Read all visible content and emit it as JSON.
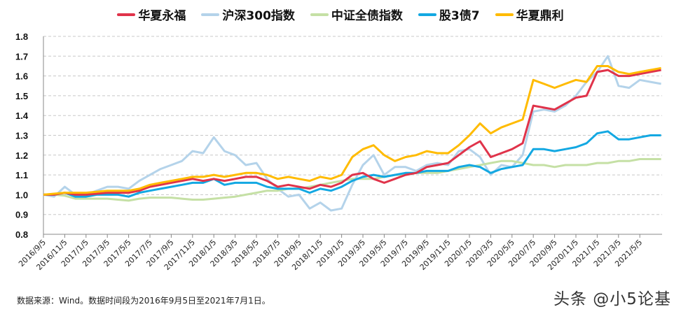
{
  "chart_data": {
    "type": "line",
    "title": "",
    "xlabel": "",
    "ylabel": "",
    "ylim": [
      0.8,
      1.8
    ],
    "yticks": [
      "0.8",
      "0.9",
      "1.0",
      "1.1",
      "1.2",
      "1.3",
      "1.4",
      "1.5",
      "1.6",
      "1.7",
      "1.8"
    ],
    "grid": "horizontal dashed",
    "legend_position": "top",
    "xtick_labels": [
      "2016/9/5",
      "2016/11/5",
      "2017/1/5",
      "2017/3/5",
      "2017/5/5",
      "2017/7/5",
      "2017/9/5",
      "2017/11/5",
      "2018/1/5",
      "2018/3/5",
      "2018/5/5",
      "2018/7/5",
      "2018/9/5",
      "2018/11/5",
      "2019/1/5",
      "2019/3/5",
      "2019/5/5",
      "2019/7/5",
      "2019/9/5",
      "2019/11/5",
      "2020/1/5",
      "2020/3/5",
      "2020/5/5",
      "2020/7/5",
      "2020/9/5",
      "2020/11/5",
      "2021/1/5",
      "2021/3/5",
      "2021/5/5"
    ],
    "x": [
      "2016-09",
      "2016-10",
      "2016-11",
      "2016-12",
      "2017-01",
      "2017-02",
      "2017-03",
      "2017-04",
      "2017-05",
      "2017-06",
      "2017-07",
      "2017-08",
      "2017-09",
      "2017-10",
      "2017-11",
      "2017-12",
      "2018-01",
      "2018-02",
      "2018-03",
      "2018-04",
      "2018-05",
      "2018-06",
      "2018-07",
      "2018-08",
      "2018-09",
      "2018-10",
      "2018-11",
      "2018-12",
      "2019-01",
      "2019-02",
      "2019-03",
      "2019-04",
      "2019-05",
      "2019-06",
      "2019-07",
      "2019-08",
      "2019-09",
      "2019-10",
      "2019-11",
      "2019-12",
      "2020-01",
      "2020-02",
      "2020-03",
      "2020-04",
      "2020-05",
      "2020-06",
      "2020-07",
      "2020-08",
      "2020-09",
      "2020-10",
      "2020-11",
      "2020-12",
      "2021-01",
      "2021-02",
      "2021-03",
      "2021-04",
      "2021-05",
      "2021-06",
      "2021-07"
    ],
    "series": [
      {
        "name": "沪深300指数",
        "color": "#b4d3ea",
        "values": [
          1.0,
          0.99,
          1.04,
          1.0,
          1.0,
          1.02,
          1.04,
          1.04,
          1.03,
          1.07,
          1.1,
          1.13,
          1.15,
          1.17,
          1.22,
          1.21,
          1.29,
          1.22,
          1.2,
          1.15,
          1.16,
          1.08,
          1.03,
          0.99,
          1.0,
          0.93,
          0.96,
          0.92,
          0.93,
          1.05,
          1.15,
          1.2,
          1.1,
          1.14,
          1.14,
          1.12,
          1.15,
          1.16,
          1.15,
          1.22,
          1.23,
          1.19,
          1.1,
          1.15,
          1.14,
          1.2,
          1.42,
          1.43,
          1.42,
          1.45,
          1.5,
          1.57,
          1.62,
          1.7,
          1.55,
          1.54,
          1.58,
          1.57,
          1.56
        ]
      },
      {
        "name": "中证全债指数",
        "color": "#c5e0a5",
        "values": [
          1.0,
          1.0,
          0.995,
          0.98,
          0.98,
          0.98,
          0.98,
          0.975,
          0.97,
          0.98,
          0.985,
          0.985,
          0.985,
          0.98,
          0.975,
          0.975,
          0.98,
          0.985,
          0.99,
          1.0,
          1.01,
          1.02,
          1.02,
          1.03,
          1.03,
          1.04,
          1.05,
          1.06,
          1.07,
          1.08,
          1.08,
          1.08,
          1.09,
          1.1,
          1.1,
          1.11,
          1.11,
          1.11,
          1.12,
          1.13,
          1.14,
          1.15,
          1.16,
          1.17,
          1.17,
          1.16,
          1.15,
          1.15,
          1.14,
          1.15,
          1.15,
          1.15,
          1.16,
          1.16,
          1.17,
          1.17,
          1.18,
          1.18,
          1.18
        ]
      },
      {
        "name": "股3债7",
        "color": "#13a8e2",
        "values": [
          1.0,
          1.0,
          1.01,
          0.99,
          0.99,
          1.0,
          1.0,
          1.0,
          0.99,
          1.01,
          1.02,
          1.03,
          1.04,
          1.05,
          1.06,
          1.06,
          1.08,
          1.05,
          1.06,
          1.06,
          1.06,
          1.04,
          1.03,
          1.03,
          1.03,
          1.01,
          1.03,
          1.02,
          1.04,
          1.07,
          1.09,
          1.1,
          1.09,
          1.1,
          1.11,
          1.11,
          1.12,
          1.12,
          1.12,
          1.14,
          1.15,
          1.14,
          1.11,
          1.13,
          1.14,
          1.15,
          1.23,
          1.23,
          1.22,
          1.23,
          1.24,
          1.26,
          1.31,
          1.32,
          1.28,
          1.28,
          1.29,
          1.3,
          1.3
        ]
      },
      {
        "name": "华夏永福",
        "color": "#e0334a",
        "values": [
          1.0,
          1.0,
          1.01,
          1.0,
          1.0,
          1.005,
          1.01,
          1.01,
          1.01,
          1.02,
          1.04,
          1.05,
          1.06,
          1.07,
          1.08,
          1.07,
          1.08,
          1.07,
          1.08,
          1.09,
          1.09,
          1.07,
          1.04,
          1.05,
          1.04,
          1.03,
          1.05,
          1.04,
          1.06,
          1.1,
          1.11,
          1.08,
          1.06,
          1.08,
          1.1,
          1.11,
          1.14,
          1.15,
          1.16,
          1.2,
          1.24,
          1.27,
          1.19,
          1.21,
          1.23,
          1.26,
          1.45,
          1.44,
          1.43,
          1.46,
          1.49,
          1.5,
          1.62,
          1.63,
          1.6,
          1.6,
          1.61,
          1.62,
          1.63
        ]
      },
      {
        "name": "华夏鼎利",
        "color": "#ffbb00",
        "values": [
          1.0,
          1.005,
          1.01,
          1.01,
          1.01,
          1.015,
          1.02,
          1.02,
          1.02,
          1.03,
          1.05,
          1.06,
          1.07,
          1.08,
          1.09,
          1.09,
          1.1,
          1.09,
          1.1,
          1.11,
          1.11,
          1.1,
          1.08,
          1.09,
          1.08,
          1.07,
          1.09,
          1.08,
          1.1,
          1.19,
          1.23,
          1.25,
          1.2,
          1.17,
          1.19,
          1.2,
          1.22,
          1.21,
          1.21,
          1.25,
          1.3,
          1.36,
          1.31,
          1.34,
          1.36,
          1.38,
          1.58,
          1.56,
          1.54,
          1.56,
          1.58,
          1.57,
          1.65,
          1.65,
          1.62,
          1.61,
          1.62,
          1.63,
          1.64
        ]
      }
    ],
    "legend_order": [
      {
        "name": "华夏永福",
        "color": "#e0334a"
      },
      {
        "name": "沪深300指数",
        "color": "#b4d3ea"
      },
      {
        "name": "中证全债指数",
        "color": "#c5e0a5"
      },
      {
        "name": "股3债7",
        "color": "#13a8e2"
      },
      {
        "name": "华夏鼎利",
        "color": "#ffbb00"
      }
    ]
  },
  "footer": {
    "source": "数据来源：Wind。数据时间段为2016年9月5日至2021年7月1日。",
    "watermark": "头条 @小5论基"
  }
}
